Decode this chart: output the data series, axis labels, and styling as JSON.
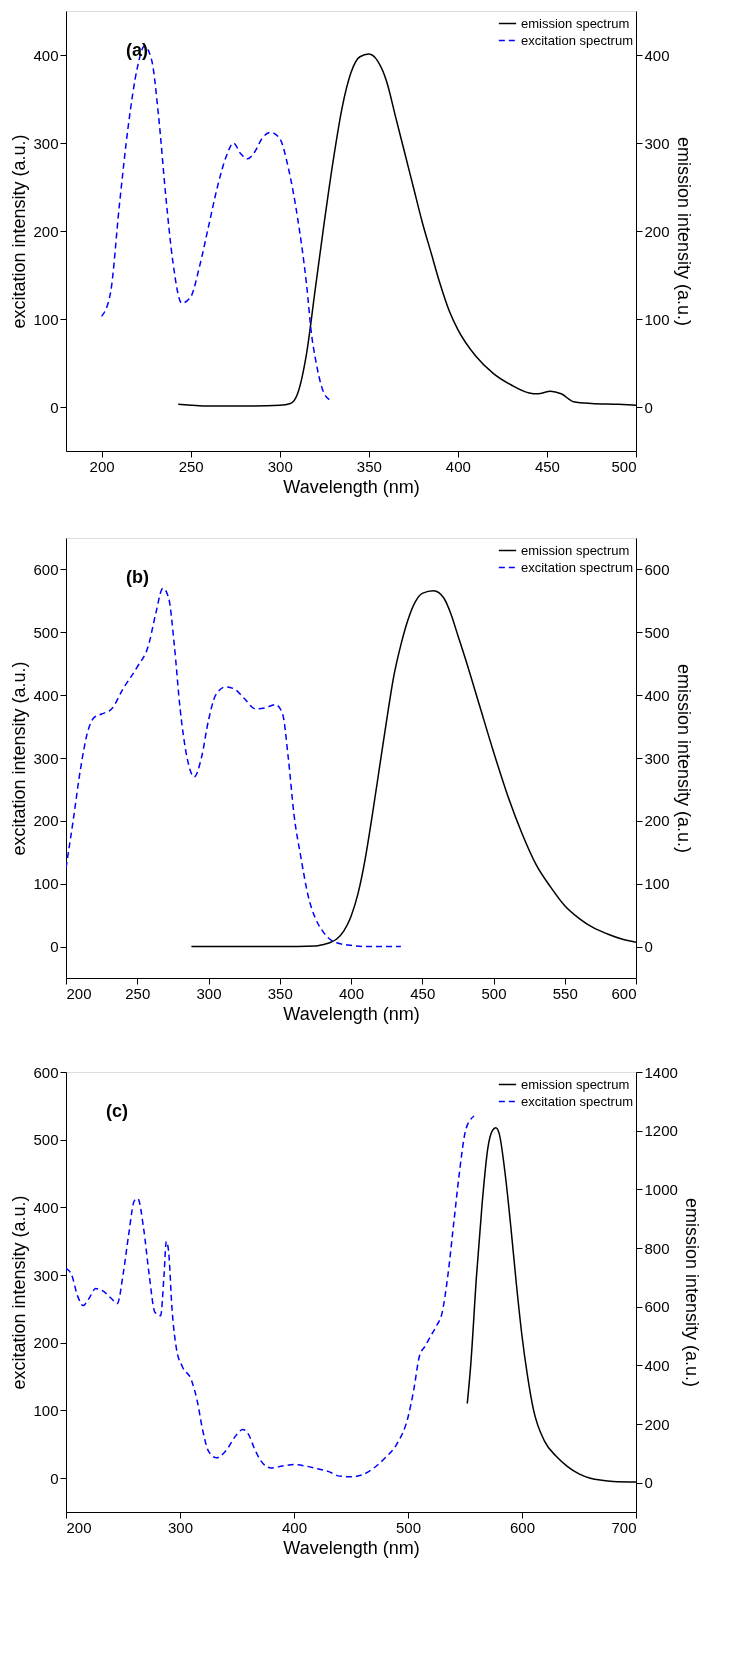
{
  "chart_data": [
    {
      "type": "line",
      "xlabel": "Wavelength (nm)",
      "ylabel": "excitation intensity (a.u.)",
      "y2label": "emission intensity (a.u.)",
      "annotations": [
        "(a)"
      ],
      "xlim": [
        180,
        500
      ],
      "xticks": [
        200,
        250,
        300,
        350,
        400,
        450,
        500
      ],
      "ylim": [
        -50,
        450
      ],
      "yticks": [
        0,
        100,
        200,
        300,
        400
      ],
      "y2lim": [
        -50,
        450
      ],
      "y2ticks": [
        0,
        100,
        200,
        300,
        400
      ],
      "grid": false,
      "legend": "top right",
      "series": [
        {
          "name": "emission spectrum",
          "color": "#000000",
          "axis": "y2",
          "line_style": "solid",
          "x": [
            243,
            260,
            280,
            300,
            306,
            310,
            315,
            320,
            325,
            330,
            335,
            340,
            345,
            350,
            355,
            360,
            365,
            370,
            375,
            380,
            385,
            390,
            395,
            400,
            410,
            420,
            430,
            440,
            445,
            452,
            458,
            465,
            475,
            490,
            500
          ],
          "values": [
            3,
            1,
            1,
            2,
            4,
            15,
            60,
            135,
            210,
            280,
            340,
            380,
            398,
            401,
            393,
            370,
            330,
            290,
            250,
            210,
            175,
            140,
            110,
            88,
            58,
            38,
            25,
            16,
            15,
            18,
            15,
            6,
            4,
            3,
            2
          ]
        },
        {
          "name": "excitation spectrum",
          "color": "#0000ff",
          "axis": "y",
          "line_style": "dashed",
          "x": [
            200,
            205,
            210,
            215,
            220,
            224,
            228,
            232,
            236,
            240,
            245,
            250,
            255,
            260,
            265,
            270,
            274,
            278,
            282,
            286,
            290,
            295,
            300,
            305,
            310,
            315,
            318,
            320,
            324,
            328
          ],
          "values": [
            103,
            130,
            230,
            320,
            385,
            410,
            395,
            330,
            240,
            165,
            118,
            125,
            160,
            205,
            250,
            285,
            300,
            288,
            282,
            290,
            305,
            312,
            305,
            270,
            215,
            140,
            80,
            55,
            20,
            8
          ]
        }
      ]
    },
    {
      "type": "line",
      "xlabel": "Wavelength (nm)",
      "ylabel": "excitation intensity (a.u.)",
      "y2label": "emission intensity (a.u.)",
      "annotations": [
        "(b)"
      ],
      "xlim": [
        200,
        600
      ],
      "xticks": [
        200,
        250,
        300,
        350,
        400,
        450,
        500,
        550,
        600
      ],
      "ylim": [
        -50,
        650
      ],
      "yticks": [
        0,
        100,
        200,
        300,
        400,
        500,
        600
      ],
      "y2lim": [
        -50,
        650
      ],
      "y2ticks": [
        0,
        100,
        200,
        300,
        400,
        500,
        600
      ],
      "grid": false,
      "legend": "top right",
      "series": [
        {
          "name": "emission spectrum",
          "color": "#000000",
          "axis": "y2",
          "line_style": "solid",
          "x": [
            288,
            350,
            375,
            380,
            385,
            390,
            395,
            400,
            405,
            410,
            415,
            420,
            425,
            430,
            435,
            440,
            445,
            450,
            458,
            465,
            470,
            475,
            480,
            490,
            500,
            510,
            520,
            530,
            540,
            550,
            560,
            570,
            580,
            590,
            600
          ],
          "values": [
            0,
            0,
            1,
            3,
            6,
            12,
            25,
            48,
            85,
            140,
            210,
            285,
            360,
            430,
            480,
            520,
            548,
            562,
            566,
            555,
            530,
            495,
            460,
            385,
            310,
            240,
            180,
            130,
            95,
            65,
            45,
            30,
            20,
            12,
            7
          ]
        },
        {
          "name": "excitation spectrum",
          "color": "#0000ff",
          "axis": "y",
          "line_style": "dashed",
          "x": [
            200,
            205,
            210,
            215,
            220,
            225,
            232,
            240,
            250,
            258,
            263,
            268,
            272,
            276,
            280,
            285,
            290,
            295,
            300,
            305,
            312,
            318,
            325,
            333,
            340,
            347,
            352,
            356,
            360,
            365,
            370,
            375,
            380,
            385,
            390,
            400,
            410,
            420,
            435
          ],
          "values": [
            125,
            200,
            280,
            340,
            365,
            370,
            378,
            410,
            445,
            480,
            530,
            570,
            555,
            480,
            380,
            300,
            270,
            300,
            360,
            400,
            413,
            410,
            395,
            378,
            380,
            385,
            370,
            300,
            210,
            140,
            80,
            45,
            25,
            12,
            6,
            2,
            0,
            0,
            0
          ]
        }
      ]
    },
    {
      "type": "line",
      "xlabel": "Wavelength (nm)",
      "ylabel": "excitation intensity (a.u.)",
      "y2label": "emission intensity (a.u.)",
      "annotations": [
        "(c)"
      ],
      "xlim": [
        200,
        700
      ],
      "xticks": [
        200,
        300,
        400,
        500,
        600,
        700
      ],
      "ylim": [
        -50,
        600
      ],
      "yticks": [
        0,
        100,
        200,
        300,
        400,
        500,
        600
      ],
      "y2lim": [
        -100,
        1400
      ],
      "y2ticks": [
        0,
        200,
        400,
        600,
        800,
        1000,
        1200,
        1400
      ],
      "grid": false,
      "legend": "top right",
      "series": [
        {
          "name": "emission spectrum",
          "color": "#000000",
          "axis": "y2",
          "line_style": "solid",
          "x": [
            552,
            555,
            560,
            565,
            570,
            574,
            577,
            580,
            585,
            590,
            595,
            600,
            605,
            610,
            620,
            630,
            640,
            650,
            660,
            670,
            680,
            700
          ],
          "values": [
            270,
            400,
            700,
            950,
            1140,
            1200,
            1210,
            1190,
            1060,
            880,
            680,
            500,
            360,
            250,
            140,
            90,
            55,
            30,
            15,
            8,
            4,
            2
          ]
        },
        {
          "name": "excitation spectrum",
          "color": "#0000ff",
          "axis": "y",
          "line_style": "dashed",
          "x": [
            200,
            205,
            210,
            215,
            220,
            226,
            232,
            240,
            245,
            250,
            255,
            260,
            263,
            268,
            273,
            278,
            283,
            286,
            288,
            290,
            293,
            297,
            302,
            310,
            315,
            320,
            325,
            332,
            340,
            350,
            355,
            360,
            365,
            370,
            380,
            390,
            400,
            410,
            420,
            430,
            440,
            450,
            460,
            470,
            480,
            490,
            500,
            505,
            510,
            515,
            520,
            525,
            530,
            535,
            540,
            545,
            550,
            555,
            558
          ],
          "values": [
            310,
            300,
            270,
            255,
            265,
            280,
            277,
            265,
            258,
            300,
            360,
            410,
            413,
            370,
            300,
            245,
            240,
            300,
            350,
            335,
            250,
            190,
            165,
            145,
            115,
            70,
            40,
            30,
            40,
            65,
            72,
            65,
            45,
            28,
            15,
            18,
            20,
            18,
            14,
            10,
            3,
            2,
            5,
            15,
            30,
            50,
            90,
            130,
            180,
            195,
            210,
            225,
            245,
            300,
            375,
            450,
            510,
            530,
            535
          ]
        }
      ]
    }
  ]
}
